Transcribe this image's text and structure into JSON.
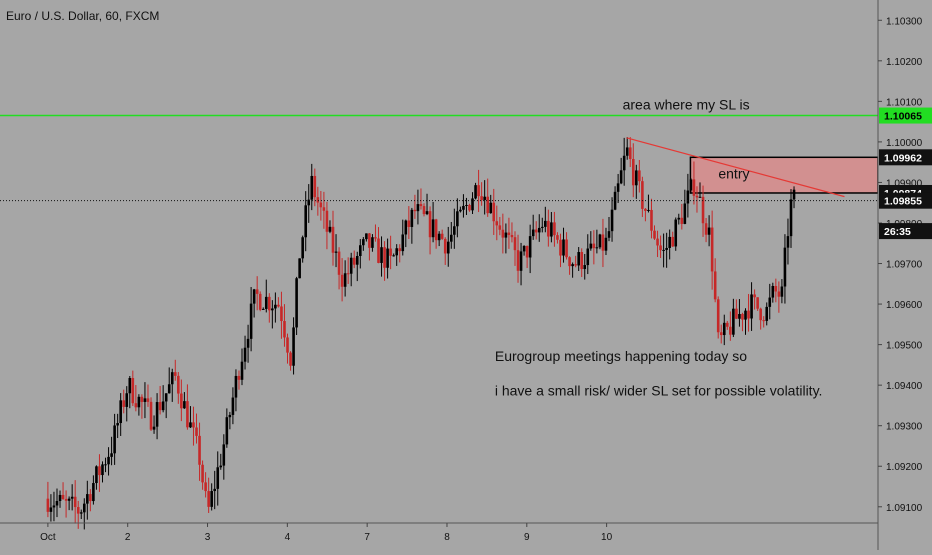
{
  "header": {
    "symbol_title": "Euro / U.S. Dollar, 60, FXCM"
  },
  "colors": {
    "background": "#a6a6a6",
    "up_candle": "#000000",
    "down_candle": "#c62828",
    "sl_line": "#22dd22",
    "sl_zone_fill": "#d98c8c",
    "trendline": "#e53935",
    "text": "#111111"
  },
  "chart_data": {
    "type": "candlestick",
    "title": "Euro / U.S. Dollar, 60, FXCM",
    "ylim": [
      1.0906,
      1.1035
    ],
    "y_ticks": [
      "1.10300",
      "1.10200",
      "1.10100",
      "1.10000",
      "1.09900",
      "1.09800",
      "1.09700",
      "1.09600",
      "1.09500",
      "1.09400",
      "1.09300",
      "1.09200",
      "1.09100"
    ],
    "x_ticks": [
      "Oct",
      "2",
      "3",
      "4",
      "7",
      "8",
      "9",
      "10"
    ],
    "price_labels": [
      {
        "label": "1.10065",
        "value": 1.10065,
        "style": "sl"
      },
      {
        "label": "1.09962",
        "value": 1.09962,
        "style": "dark"
      },
      {
        "label": "1.09874",
        "value": 1.09874,
        "style": "dark"
      },
      {
        "label": "1.09855",
        "value": 1.09855,
        "style": "dark"
      },
      {
        "label": "26:35",
        "value": 1.0978,
        "style": "dark"
      }
    ],
    "horizontal_lines": [
      {
        "name": "SL level",
        "value": 1.10065,
        "style": "solid"
      },
      {
        "name": "current price",
        "value": 1.09855,
        "style": "dotted"
      }
    ],
    "sl_zone": {
      "x_start": 8.05,
      "y_top": 1.09962,
      "y_bottom": 1.09874
    },
    "trendline": {
      "x1": 7.25,
      "y1": 1.1001,
      "x2": 9.98,
      "y2": 1.09865
    },
    "annotations": [
      {
        "text": "area where my SL is",
        "x": 7.2,
        "y": 1.1008
      },
      {
        "text": "entry",
        "x": 8.4,
        "y": 1.0991
      },
      {
        "text": "Eurogroup meetings happening today so",
        "x": 5.6,
        "y": 1.0946
      },
      {
        "text": "i have a small risk/ wider SL set for possible volatility.",
        "x": 5.6,
        "y": 1.09375
      }
    ],
    "key_points": [
      {
        "x": 0,
        "y": 1.0912
      },
      {
        "x": 0.4,
        "y": 1.0909
      },
      {
        "x": 0.8,
        "y": 1.0925
      },
      {
        "x": 1.0,
        "y": 1.094
      },
      {
        "x": 1.3,
        "y": 1.0932
      },
      {
        "x": 1.6,
        "y": 1.0942
      },
      {
        "x": 1.9,
        "y": 1.0922
      },
      {
        "x": 2.0,
        "y": 1.0908
      },
      {
        "x": 2.2,
        "y": 1.0925
      },
      {
        "x": 2.4,
        "y": 1.0945
      },
      {
        "x": 2.6,
        "y": 1.0962
      },
      {
        "x": 2.9,
        "y": 1.096
      },
      {
        "x": 3.05,
        "y": 1.0946
      },
      {
        "x": 3.15,
        "y": 1.0972
      },
      {
        "x": 3.3,
        "y": 1.099
      },
      {
        "x": 3.55,
        "y": 1.0975
      },
      {
        "x": 3.7,
        "y": 1.0966
      },
      {
        "x": 4.0,
        "y": 1.0975
      },
      {
        "x": 4.3,
        "y": 1.097
      },
      {
        "x": 4.6,
        "y": 1.0983
      },
      {
        "x": 5.0,
        "y": 1.0975
      },
      {
        "x": 5.4,
        "y": 1.099
      },
      {
        "x": 5.9,
        "y": 1.097
      },
      {
        "x": 6.2,
        "y": 1.098
      },
      {
        "x": 6.6,
        "y": 1.097
      },
      {
        "x": 7.0,
        "y": 1.0975
      },
      {
        "x": 7.25,
        "y": 1.0998
      },
      {
        "x": 7.4,
        "y": 1.0988
      },
      {
        "x": 7.7,
        "y": 1.0972
      },
      {
        "x": 7.9,
        "y": 1.098
      },
      {
        "x": 8.1,
        "y": 1.099
      },
      {
        "x": 8.3,
        "y": 1.0976
      },
      {
        "x": 8.4,
        "y": 1.095
      },
      {
        "x": 8.6,
        "y": 1.0956
      },
      {
        "x": 8.8,
        "y": 1.096
      },
      {
        "x": 9.0,
        "y": 1.0958
      },
      {
        "x": 9.1,
        "y": 1.0963
      },
      {
        "x": 9.2,
        "y": 1.0962
      },
      {
        "x": 9.25,
        "y": 1.0975
      },
      {
        "x": 9.32,
        "y": 1.0986
      },
      {
        "x": 9.36,
        "y": 1.09855
      }
    ],
    "seed": 7
  }
}
